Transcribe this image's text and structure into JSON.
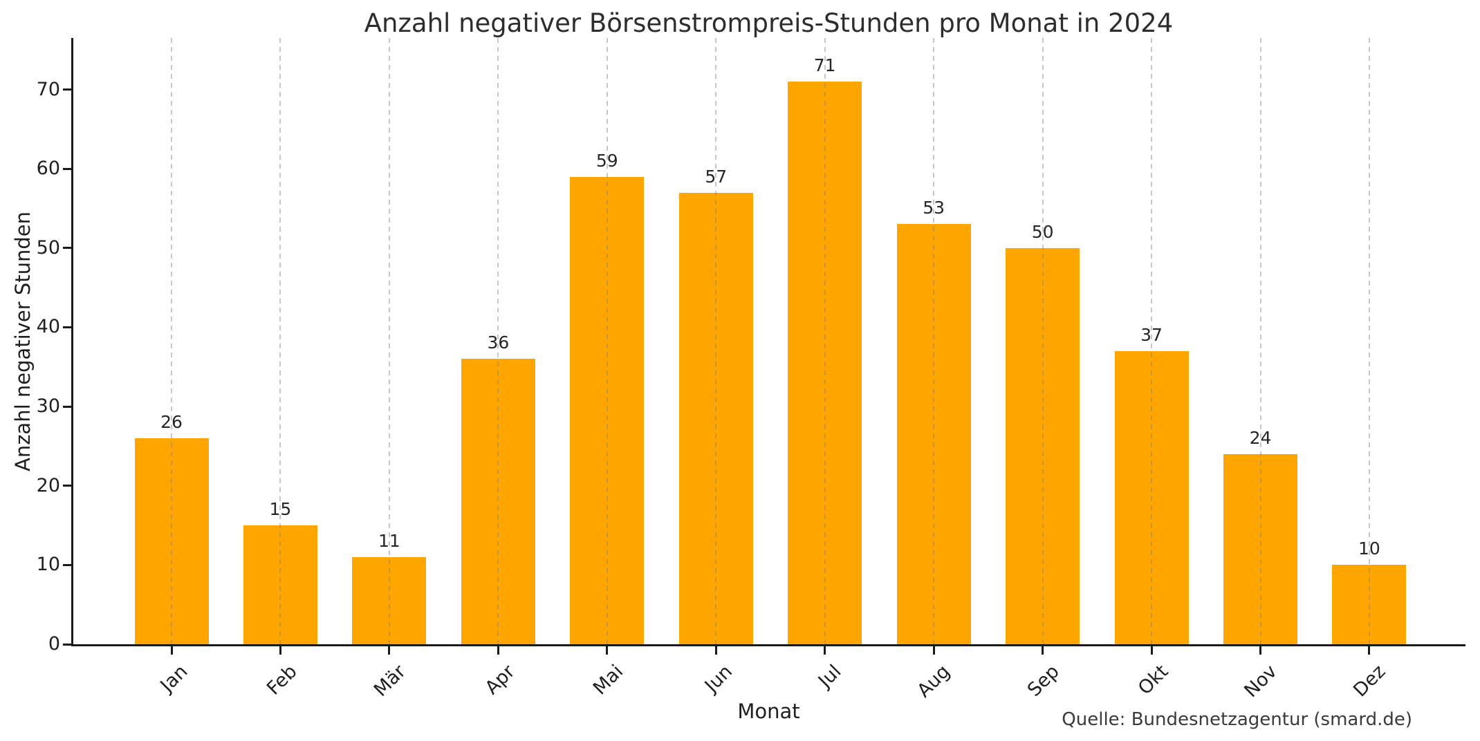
{
  "chart": {
    "title": "Anzahl negativer Börsenstrompreis-Stunden pro Monat in 2024",
    "xlabel": "Monat",
    "ylabel": "Anzahl negativer Stunden",
    "source": "Quelle: Bundesnetzagentur (smard.de)"
  },
  "chart_data": {
    "type": "bar",
    "title": "Anzahl negativer Börsenstrompreis-Stunden pro Monat in 2024",
    "categories": [
      "Jan",
      "Feb",
      "Mär",
      "Apr",
      "Mai",
      "Jun",
      "Jul",
      "Aug",
      "Sep",
      "Okt",
      "Nov",
      "Dez"
    ],
    "values": [
      26,
      15,
      11,
      36,
      59,
      57,
      71,
      53,
      50,
      37,
      24,
      10
    ],
    "xlabel": "Monat",
    "ylabel": "Anzahl negativer Stunden",
    "yticks": [
      0,
      10,
      20,
      30,
      40,
      50,
      60,
      70
    ],
    "ylim": [
      0,
      76.5
    ],
    "bar_color": "#FFA500",
    "value_labels": true,
    "grid": "vertical-dashed",
    "legend": "none",
    "source": "Quelle: Bundesnetzagentur (smard.de)"
  }
}
